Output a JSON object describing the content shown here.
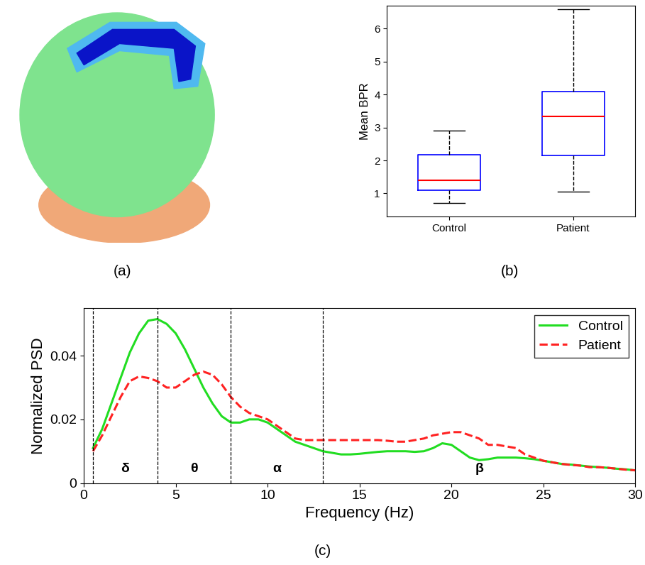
{
  "chart_data": [
    {
      "type": "image",
      "caption": "(a)"
    },
    {
      "type": "box",
      "caption": "(b)",
      "ylabel": "Mean BPR",
      "categories": [
        "Control",
        "Patient"
      ],
      "whisker_low": [
        0.7,
        1.05
      ],
      "q1": [
        1.1,
        2.15
      ],
      "median": [
        1.4,
        3.33
      ],
      "q3": [
        2.17,
        4.1
      ],
      "whisker_high": [
        2.9,
        6.6
      ],
      "color": "#0000ff",
      "ylim": [
        0.3,
        6.7
      ],
      "yticks": [
        1,
        2,
        3,
        4,
        5,
        6
      ]
    },
    {
      "type": "line",
      "caption": "(c)",
      "xlabel": "Frequency (Hz)",
      "ylabel": "Normalized PSD",
      "x": [
        0.5,
        1,
        1.5,
        2,
        2.5,
        3,
        3.5,
        4,
        4.5,
        5,
        5.5,
        6,
        6.5,
        7,
        7.5,
        8,
        8.5,
        9,
        9.5,
        10,
        10.5,
        11,
        11.5,
        12,
        12.5,
        13,
        13.5,
        14,
        14.5,
        15,
        15.5,
        16,
        16.5,
        17,
        17.5,
        18,
        18.5,
        19,
        19.5,
        20,
        20.5,
        21,
        21.5,
        22,
        22.5,
        23,
        23.5,
        24,
        24.5,
        25,
        25.5,
        26,
        26.5,
        27,
        27.5,
        28,
        28.5,
        29,
        29.5,
        30
      ],
      "series": [
        {
          "name": "Control",
          "color": "#22dd22",
          "line_style": "solid",
          "values": [
            0.011,
            0.017,
            0.025,
            0.033,
            0.041,
            0.047,
            0.051,
            0.0515,
            0.05,
            0.047,
            0.042,
            0.036,
            0.03,
            0.025,
            0.021,
            0.019,
            0.019,
            0.02,
            0.02,
            0.019,
            0.017,
            0.015,
            0.013,
            0.012,
            0.011,
            0.01,
            0.0095,
            0.009,
            0.009,
            0.0092,
            0.0095,
            0.0098,
            0.01,
            0.01,
            0.01,
            0.0098,
            0.01,
            0.011,
            0.0125,
            0.012,
            0.01,
            0.008,
            0.0072,
            0.0075,
            0.008,
            0.008,
            0.008,
            0.0078,
            0.0075,
            0.007,
            0.0065,
            0.006,
            0.0058,
            0.0055,
            0.0052,
            0.005,
            0.0048,
            0.0045,
            0.0043,
            0.004
          ]
        },
        {
          "name": "Patient",
          "color": "#ff2222",
          "line_style": "dashed",
          "values": [
            0.01,
            0.015,
            0.021,
            0.027,
            0.032,
            0.0335,
            0.033,
            0.032,
            0.03,
            0.03,
            0.032,
            0.034,
            0.035,
            0.034,
            0.031,
            0.027,
            0.024,
            0.022,
            0.021,
            0.02,
            0.018,
            0.016,
            0.014,
            0.0135,
            0.0135,
            0.0135,
            0.0135,
            0.0135,
            0.0135,
            0.0135,
            0.0135,
            0.0135,
            0.0133,
            0.013,
            0.013,
            0.0135,
            0.014,
            0.015,
            0.0155,
            0.016,
            0.016,
            0.015,
            0.014,
            0.012,
            0.012,
            0.0115,
            0.011,
            0.009,
            0.008,
            0.007,
            0.0065,
            0.006,
            0.0057,
            0.0055,
            0.005,
            0.005,
            0.0048,
            0.0045,
            0.0042,
            0.004
          ]
        }
      ],
      "bands": [
        {
          "label": "δ",
          "start": 0.5,
          "end": 4
        },
        {
          "label": "θ",
          "start": 4,
          "end": 8
        },
        {
          "label": "α",
          "start": 8,
          "end": 13
        },
        {
          "label": "β",
          "start": 13,
          "end": 30
        }
      ],
      "xlim": [
        0,
        30
      ],
      "xticks": [
        0,
        5,
        10,
        15,
        20,
        25,
        30
      ],
      "ylim": [
        0,
        0.055
      ],
      "yticks": [
        0,
        0.02,
        0.04
      ],
      "legend": "upper right"
    }
  ]
}
